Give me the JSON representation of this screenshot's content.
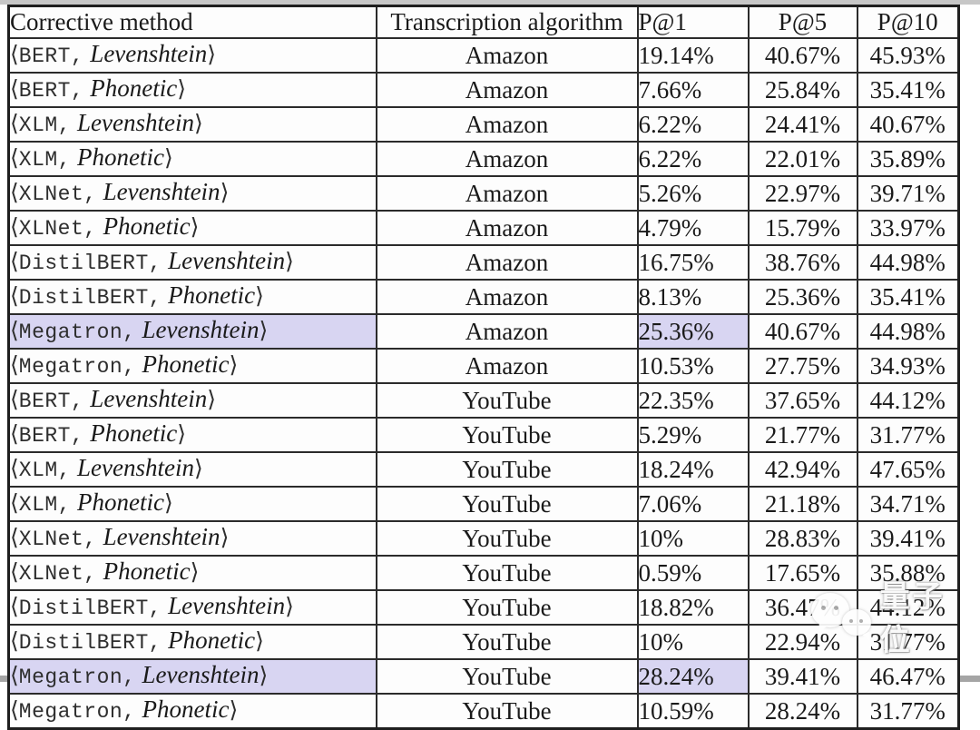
{
  "table": {
    "columns": [
      "Corrective method",
      "Transcription algorithm",
      "P@1",
      "P@5",
      "P@10"
    ],
    "bracket_open": "⟨",
    "bracket_close": "⟩",
    "separator": ",",
    "highlight_color": "#d8d5f2",
    "rows": [
      {
        "model": "BERT",
        "distance": "Levenshtein",
        "algorithm": "Amazon",
        "p1": "19.14%",
        "p5": "40.67%",
        "p10": "45.93%",
        "highlight": false
      },
      {
        "model": "BERT",
        "distance": "Phonetic",
        "algorithm": "Amazon",
        "p1": "7.66%",
        "p5": "25.84%",
        "p10": "35.41%",
        "highlight": false
      },
      {
        "model": "XLM",
        "distance": "Levenshtein",
        "algorithm": "Amazon",
        "p1": "6.22%",
        "p5": "24.41%",
        "p10": "40.67%",
        "highlight": false
      },
      {
        "model": "XLM",
        "distance": "Phonetic",
        "algorithm": "Amazon",
        "p1": "6.22%",
        "p5": "22.01%",
        "p10": "35.89%",
        "highlight": false
      },
      {
        "model": "XLNet",
        "distance": "Levenshtein",
        "algorithm": "Amazon",
        "p1": "5.26%",
        "p5": "22.97%",
        "p10": "39.71%",
        "highlight": false
      },
      {
        "model": "XLNet",
        "distance": "Phonetic",
        "algorithm": "Amazon",
        "p1": "4.79%",
        "p5": "15.79%",
        "p10": "33.97%",
        "highlight": false
      },
      {
        "model": "DistilBERT",
        "distance": "Levenshtein",
        "algorithm": "Amazon",
        "p1": "16.75%",
        "p5": "38.76%",
        "p10": "44.98%",
        "highlight": false
      },
      {
        "model": "DistilBERT",
        "distance": "Phonetic",
        "algorithm": "Amazon",
        "p1": "8.13%",
        "p5": "25.36%",
        "p10": "35.41%",
        "highlight": false
      },
      {
        "model": "Megatron",
        "distance": "Levenshtein",
        "algorithm": "Amazon",
        "p1": "25.36%",
        "p5": "40.67%",
        "p10": "44.98%",
        "highlight": true
      },
      {
        "model": "Megatron",
        "distance": "Phonetic",
        "algorithm": "Amazon",
        "p1": "10.53%",
        "p5": "27.75%",
        "p10": "34.93%",
        "highlight": false
      },
      {
        "model": "BERT",
        "distance": "Levenshtein",
        "algorithm": "YouTube",
        "p1": "22.35%",
        "p5": "37.65%",
        "p10": "44.12%",
        "highlight": false
      },
      {
        "model": "BERT",
        "distance": "Phonetic",
        "algorithm": "YouTube",
        "p1": "5.29%",
        "p5": "21.77%",
        "p10": "31.77%",
        "highlight": false
      },
      {
        "model": "XLM",
        "distance": "Levenshtein",
        "algorithm": "YouTube",
        "p1": "18.24%",
        "p5": "42.94%",
        "p10": "47.65%",
        "highlight": false
      },
      {
        "model": "XLM",
        "distance": "Phonetic",
        "algorithm": "YouTube",
        "p1": "7.06%",
        "p5": "21.18%",
        "p10": "34.71%",
        "highlight": false
      },
      {
        "model": "XLNet",
        "distance": "Levenshtein",
        "algorithm": "YouTube",
        "p1": "10%",
        "p5": "28.83%",
        "p10": "39.41%",
        "highlight": false
      },
      {
        "model": "XLNet",
        "distance": "Phonetic",
        "algorithm": "YouTube",
        "p1": "0.59%",
        "p5": "17.65%",
        "p10": "35.88%",
        "highlight": false
      },
      {
        "model": "DistilBERT",
        "distance": "Levenshtein",
        "algorithm": "YouTube",
        "p1": "18.82%",
        "p5": "36.47%",
        "p10": "44.12%",
        "highlight": false
      },
      {
        "model": "DistilBERT",
        "distance": "Phonetic",
        "algorithm": "YouTube",
        "p1": "10%",
        "p5": "22.94%",
        "p10": "31.77%",
        "highlight": false
      },
      {
        "model": "Megatron",
        "distance": "Levenshtein",
        "algorithm": "YouTube",
        "p1": "28.24%",
        "p5": "39.41%",
        "p10": "46.47%",
        "highlight": true
      },
      {
        "model": "Megatron",
        "distance": "Phonetic",
        "algorithm": "YouTube",
        "p1": "10.59%",
        "p5": "28.24%",
        "p10": "31.77%",
        "highlight": false
      }
    ]
  },
  "watermark": {
    "text": "量子位",
    "icon": "wechat-chat-bubbles-icon"
  }
}
